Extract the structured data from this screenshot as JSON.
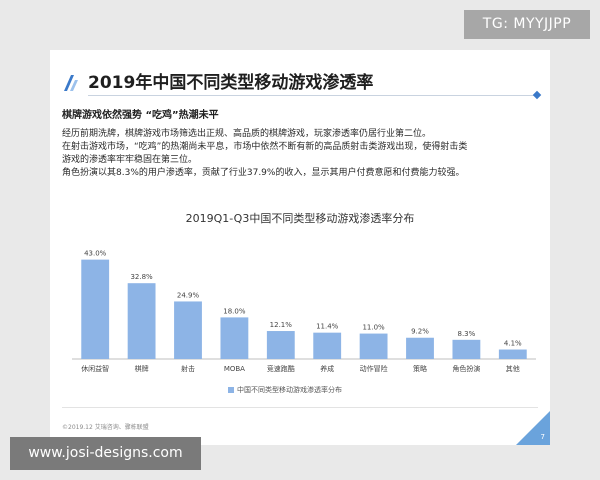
{
  "watermarks": {
    "tg": "TG: MYYJJPP",
    "site": "www.josi-designs.com"
  },
  "slide": {
    "title": "2019年中国不同类型移动游戏渗透率",
    "headline": "棋牌游戏依然强势 “吃鸡”热潮未平",
    "paragraphs": [
      "经历前期洗牌，棋牌游戏市场筛选出正规、高品质的棋牌游戏，玩家渗透率仍居行业第二位。",
      "在射击游戏市场，“吃鸡”的热潮尚未平息，市场中依然不断有新的高品质射击类游戏出现，使得射击类",
      "游戏的渗透率牢牢稳固在第三位。",
      "角色扮演以其8.3%的用户渗透率，贡献了行业37.9%的收入，显示其用户付费意愿和付费能力较强。"
    ],
    "source": "©2019.12  艾瑞咨询、骤栋联盟",
    "page_number": "7"
  },
  "colors": {
    "bar": "#8db4e6",
    "accent": "#3a79c9",
    "corner": "#6aa3dc"
  },
  "chart_data": {
    "type": "bar",
    "title": "2019Q1-Q3中国不同类型移动游戏渗透率分布",
    "categories": [
      "休闲益智",
      "棋牌",
      "射击",
      "MOBA",
      "竞速跑酷",
      "养成",
      "动作冒险",
      "策略",
      "角色扮演",
      "其他"
    ],
    "series": [
      {
        "name": "中国不同类型移动游戏渗透率分布",
        "values": [
          43.0,
          32.8,
          24.9,
          18.0,
          12.1,
          11.4,
          11.0,
          9.2,
          8.3,
          4.1
        ],
        "labels": [
          "43.0%",
          "32.8%",
          "24.9%",
          "18.0%",
          "12.1%",
          "11.4%",
          "11.0%",
          "9.2%",
          "8.3%",
          "4.1%"
        ]
      }
    ],
    "ylim": [
      0,
      45
    ],
    "grid": false,
    "legend": "bottom"
  }
}
